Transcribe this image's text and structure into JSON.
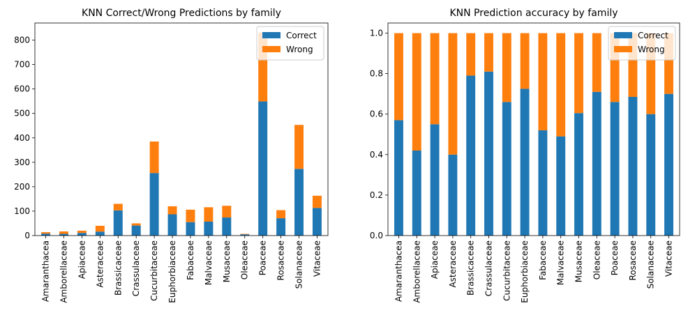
{
  "chart_data": [
    {
      "type": "bar",
      "stacked": true,
      "title": "KNN Correct/Wrong Predictions by family",
      "xlabel": "",
      "ylabel": "",
      "categories": [
        "Amaranthacea",
        "Amborellaceae",
        "Apiaceae",
        "Asteraceae",
        "Brassicaceae",
        "Crassulaceae",
        "Cucurbitaceae",
        "Euphorbiaceae",
        "Fabaceae",
        "Malvaceae",
        "Musaceae",
        "Oleaceae",
        "Poaceae",
        "Rosaceae",
        "Solanaceae",
        "Vitaceae"
      ],
      "series": [
        {
          "name": "Correct",
          "color": "#1f77b4",
          "values": [
            8,
            7,
            11,
            16,
            103,
            41,
            256,
            87,
            55,
            57,
            74,
            5,
            549,
            71,
            273,
            113
          ]
        },
        {
          "name": "Wrong",
          "color": "#ff7f0e",
          "values": [
            6,
            10,
            9,
            24,
            27,
            9,
            129,
            33,
            51,
            59,
            48,
            2,
            282,
            33,
            180,
            50
          ]
        }
      ],
      "ylim": [
        0,
        870
      ],
      "yticks": [
        "0",
        "100",
        "200",
        "300",
        "400",
        "500",
        "600",
        "700",
        "800"
      ],
      "legend": "top-right"
    },
    {
      "type": "bar",
      "stacked": true,
      "title": "KNN Prediction accuracy by family",
      "xlabel": "",
      "ylabel": "",
      "categories": [
        "Amaranthacea",
        "Amborellaceae",
        "Apiaceae",
        "Asteraceae",
        "Brassicaceae",
        "Crassulaceae",
        "Cucurbitaceae",
        "Euphorbiaceae",
        "Fabaceae",
        "Malvaceae",
        "Musaceae",
        "Oleaceae",
        "Poaceae",
        "Rosaceae",
        "Solanaceae",
        "Vitaceae"
      ],
      "series": [
        {
          "name": "Correct",
          "color": "#1f77b4",
          "values": [
            0.57,
            0.42,
            0.55,
            0.4,
            0.79,
            0.81,
            0.66,
            0.725,
            0.52,
            0.49,
            0.605,
            0.71,
            0.66,
            0.685,
            0.6,
            0.7
          ]
        },
        {
          "name": "Wrong",
          "color": "#ff7f0e",
          "values": [
            0.43,
            0.58,
            0.45,
            0.6,
            0.21,
            0.19,
            0.34,
            0.275,
            0.48,
            0.51,
            0.395,
            0.29,
            0.34,
            0.315,
            0.4,
            0.3
          ]
        }
      ],
      "ylim": [
        0,
        1.05
      ],
      "yticks": [
        "0.0",
        "0.2",
        "0.4",
        "0.6",
        "0.8",
        "1.0"
      ],
      "legend": "top-right"
    }
  ]
}
